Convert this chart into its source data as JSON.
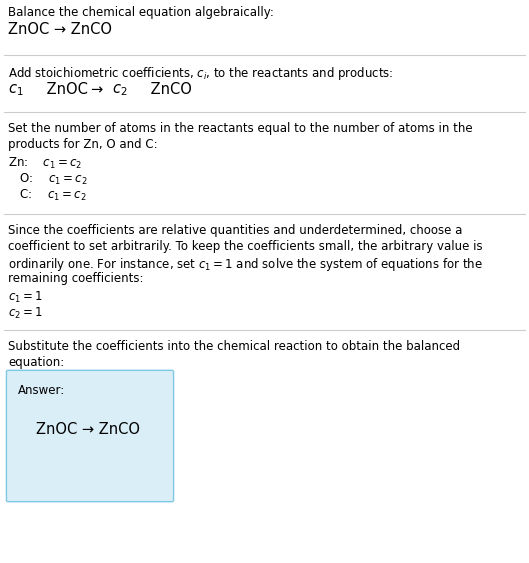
{
  "title_line1": "Balance the chemical equation algebraically:",
  "title_line2": "ZnOC → ZnCO",
  "section1_header": "Add stoichiometric coefficients, $c_i$, to the reactants and products:",
  "section1_equation_parts": [
    "$c_1$",
    " ZnOC ",
    "→",
    " $c_2$",
    " ZnCO"
  ],
  "section2_header1": "Set the number of atoms in the reactants equal to the number of atoms in the",
  "section2_header2": "products for Zn, O and C:",
  "section2_zn": "Zn:  $c_1 = c_2$",
  "section2_o": " O:  $c_1 = c_2$",
  "section2_c": " C:  $c_1 = c_2$",
  "section3_text1": "Since the coefficients are relative quantities and underdetermined, choose a",
  "section3_text2": "coefficient to set arbitrarily. To keep the coefficients small, the arbitrary value is",
  "section3_text3": "ordinarily one. For instance, set $c_1 = 1$ and solve the system of equations for the",
  "section3_text4": "remaining coefficients:",
  "section3_c1": "$c_1 = 1$",
  "section3_c2": "$c_2 = 1$",
  "section4_header1": "Substitute the coefficients into the chemical reaction to obtain the balanced",
  "section4_header2": "equation:",
  "answer_label": "Answer:",
  "answer_equation": "ZnOC → ZnCO",
  "bg_color": "#ffffff",
  "line_color": "#cccccc",
  "answer_box_facecolor": "#daeef8",
  "answer_box_edgecolor": "#7ec8e3",
  "text_color": "#000000"
}
